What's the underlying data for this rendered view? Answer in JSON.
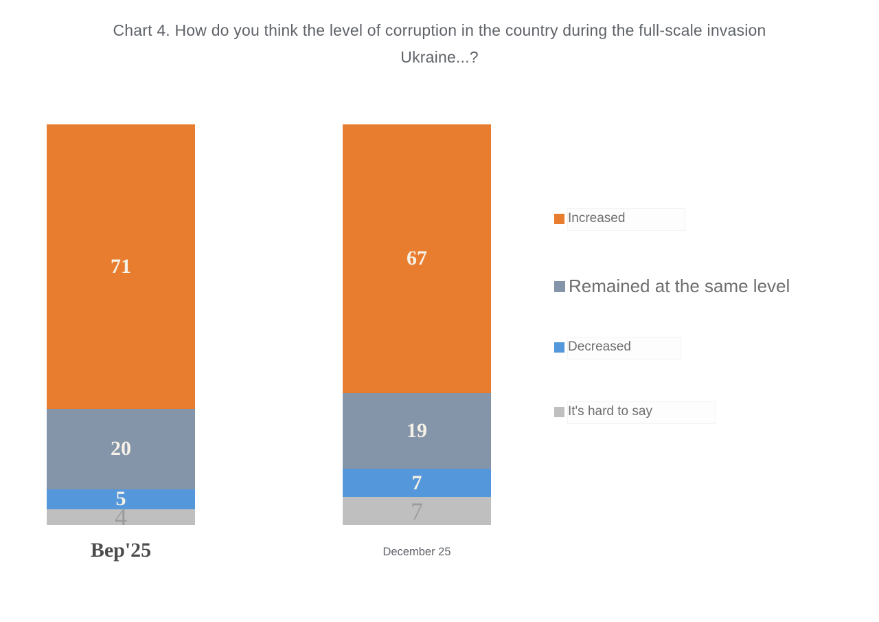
{
  "title": {
    "line1": "Chart 4. How do you think the level of corruption in the country during the full-scale invasion",
    "line2": "Ukraine...?"
  },
  "chart_data": {
    "type": "bar",
    "subtype": "stacked-column-100",
    "title": "Chart 4. How do you think the level of corruption in the country during the full-scale invasion Ukraine...?",
    "categories": [
      "Вер'25",
      "December 25"
    ],
    "series": [
      {
        "name": "Increased",
        "color": "#e87d2f",
        "values": [
          71,
          67
        ]
      },
      {
        "name": "Remained at the same level",
        "color": "#8495aa",
        "values": [
          20,
          19
        ]
      },
      {
        "name": "Decreased",
        "color": "#5498db",
        "values": [
          5,
          7
        ]
      },
      {
        "name": "It's hard to say",
        "color": "#bfbfbf",
        "values": [
          4,
          7
        ]
      }
    ],
    "ylim": [
      0,
      100
    ],
    "grid": false,
    "axes_visible": false,
    "legend_position": "right",
    "value_labels_shown": true,
    "value_label_color": "#f6f1e7",
    "last_series_label_color": "#9c9c9c",
    "xlabel": "",
    "ylabel": ""
  }
}
